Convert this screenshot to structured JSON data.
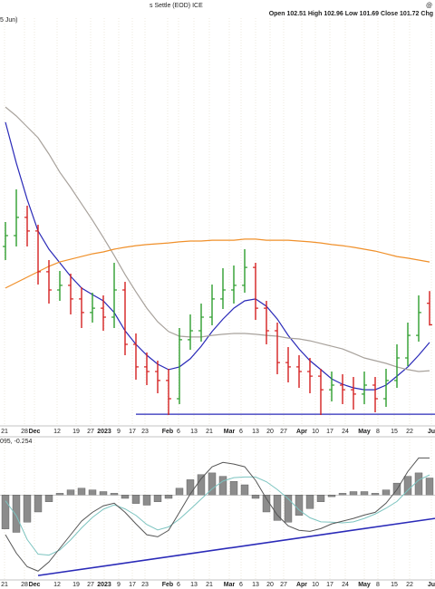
{
  "chart_data": [
    {
      "type": "ohlc",
      "title": "s Settle (EOD) ICE",
      "readout": "Open 102.51  High 102.96  Low 101.69  Close 101.72  Chg",
      "corner_mark": "@",
      "note": "5 Jun)",
      "open": [
        104.6,
        105.0,
        105.67,
        105.17,
        103.67,
        103.0,
        103.17,
        102.67,
        102.17,
        102.33,
        102.0,
        103.0,
        101.0,
        100.17,
        100.0,
        99.67,
        99.0,
        101.17,
        101.5,
        102.0,
        102.67,
        103.0,
        103.17,
        103.83,
        102.33,
        101.5,
        100.33,
        100.17,
        100.0,
        99.83,
        99.33,
        99.5,
        99.33,
        99.17,
        99.5,
        99.0,
        99.67,
        100.5,
        101.33,
        102.51
      ],
      "high": [
        105.5,
        106.7,
        106.1,
        105.4,
        104.1,
        103.7,
        103.6,
        103.1,
        102.9,
        102.8,
        104.0,
        103.3,
        101.4,
        100.7,
        100.4,
        100.1,
        101.6,
        102.1,
        102.5,
        103.2,
        103.8,
        103.9,
        104.5,
        104.0,
        102.6,
        101.8,
        100.9,
        100.6,
        100.5,
        100.1,
        100.0,
        99.9,
        99.8,
        100.0,
        99.8,
        100.1,
        101.0,
        101.8,
        102.8,
        102.96
      ],
      "low": [
        104.1,
        104.6,
        104.6,
        103.2,
        102.5,
        102.6,
        102.1,
        101.6,
        101.8,
        101.5,
        101.6,
        100.6,
        99.7,
        99.5,
        99.2,
        98.4,
        98.8,
        100.8,
        101.1,
        101.7,
        102.3,
        102.5,
        102.9,
        101.9,
        101.0,
        99.9,
        99.6,
        99.4,
        99.2,
        98.4,
        98.9,
        98.8,
        98.6,
        98.8,
        98.5,
        98.7,
        99.4,
        100.2,
        101.1,
        101.69
      ],
      "close": [
        105.0,
        105.67,
        105.17,
        103.67,
        103.0,
        103.17,
        102.67,
        102.17,
        102.33,
        102.0,
        103.0,
        101.0,
        100.17,
        100.0,
        99.67,
        99.0,
        101.17,
        101.5,
        102.0,
        102.67,
        103.0,
        103.17,
        103.83,
        102.33,
        101.5,
        100.33,
        100.17,
        100.0,
        99.83,
        99.33,
        99.5,
        99.33,
        99.17,
        99.5,
        99.0,
        99.67,
        100.5,
        101.33,
        102.17,
        101.72
      ],
      "up_color": "#2e9e2e",
      "down_color": "#d42020",
      "series": [
        {
          "color": "#2a2ab8",
          "values": [
            109.17,
            107.67,
            106.33,
            105.17,
            104.5,
            104.0,
            103.5,
            103.07,
            102.83,
            102.6,
            102.17,
            101.5,
            101.0,
            100.6,
            100.27,
            100.07,
            100.17,
            100.47,
            100.93,
            101.47,
            101.93,
            102.33,
            102.6,
            102.67,
            102.4,
            101.93,
            101.33,
            100.83,
            100.4,
            100.07,
            99.73,
            99.53,
            99.4,
            99.33,
            99.33,
            99.5,
            99.83,
            100.17,
            100.6,
            101.07
          ]
        },
        {
          "color": "#a8a29c",
          "values": [
            109.73,
            109.4,
            109.0,
            108.6,
            108.0,
            107.33,
            106.77,
            106.17,
            105.57,
            104.93,
            104.27,
            103.57,
            102.93,
            102.33,
            101.83,
            101.47,
            101.3,
            101.27,
            101.27,
            101.33,
            101.37,
            101.4,
            101.4,
            101.37,
            101.33,
            101.3,
            101.23,
            101.2,
            101.13,
            101.03,
            100.93,
            100.83,
            100.67,
            100.5,
            100.4,
            100.3,
            100.17,
            100.07,
            100.0,
            100.03
          ]
        },
        {
          "color": "#f0902a",
          "values": [
            103.07,
            103.27,
            103.47,
            103.67,
            103.87,
            104.03,
            104.13,
            104.23,
            104.33,
            104.4,
            104.5,
            104.57,
            104.63,
            104.67,
            104.7,
            104.73,
            104.77,
            104.8,
            104.8,
            104.83,
            104.83,
            104.83,
            104.87,
            104.87,
            104.83,
            104.83,
            104.83,
            104.8,
            104.77,
            104.73,
            104.67,
            104.63,
            104.57,
            104.5,
            104.43,
            104.33,
            104.23,
            104.17,
            104.1,
            104.03
          ]
        }
      ],
      "support": {
        "value": 98.43,
        "color": "#2a2ab8"
      },
      "ylim": [
        98,
        113
      ],
      "xtick_labels": [
        "21",
        "28",
        "Dec",
        "12",
        "19",
        "27",
        "2023",
        "9",
        "17",
        "23",
        "Feb",
        "6",
        "13",
        "21",
        "Mar",
        "6",
        "13",
        "20",
        "27",
        "Apr",
        "10",
        "17",
        "24",
        "May",
        "8",
        "15",
        "22",
        "Ju"
      ]
    },
    {
      "type": "macd",
      "label": "095, -0.254",
      "macd": {
        "color": "#555555",
        "values": [
          -1.17,
          -1.71,
          -2.11,
          -2.24,
          -1.97,
          -1.57,
          -1.17,
          -0.77,
          -0.51,
          -0.32,
          -0.24,
          -0.51,
          -0.85,
          -1.17,
          -1.23,
          -1.04,
          -0.51,
          0.03,
          0.48,
          0.83,
          0.96,
          0.91,
          0.83,
          0.43,
          -0.11,
          -0.59,
          -0.91,
          -1.04,
          -1.07,
          -0.99,
          -0.85,
          -0.77,
          -0.69,
          -0.59,
          -0.51,
          -0.24,
          0.16,
          0.69,
          1.09,
          1.09
        ]
      },
      "signal": {
        "color": "#7cc4c0",
        "values": [
          -0.17,
          -0.61,
          -1.31,
          -1.74,
          -1.77,
          -1.62,
          -1.32,
          -0.97,
          -0.66,
          -0.42,
          -0.29,
          -0.41,
          -0.6,
          -0.87,
          -1.03,
          -0.94,
          -0.71,
          -0.42,
          -0.12,
          0.18,
          0.41,
          0.51,
          0.53,
          0.53,
          0.39,
          0.16,
          -0.11,
          -0.44,
          -0.67,
          -0.79,
          -0.8,
          -0.82,
          -0.79,
          -0.69,
          -0.56,
          -0.39,
          -0.19,
          0.14,
          0.44,
          0.59
        ]
      },
      "histogram": {
        "color": "#8c8c8c",
        "values": [
          -1.0,
          -1.1,
          -0.8,
          -0.5,
          -0.2,
          0.05,
          0.15,
          0.2,
          0.15,
          0.1,
          0.05,
          -0.1,
          -0.25,
          -0.3,
          -0.2,
          -0.1,
          0.2,
          0.45,
          0.6,
          0.65,
          0.55,
          0.4,
          0.3,
          -0.1,
          -0.5,
          -0.75,
          -0.8,
          -0.6,
          -0.4,
          -0.2,
          -0.05,
          0.05,
          0.1,
          0.1,
          0.05,
          0.15,
          0.35,
          0.55,
          0.65,
          0.5
        ]
      },
      "trendline": {
        "color": "#2a2ab8",
        "values": [
          -2.37,
          -0.69
        ]
      },
      "ylim": [
        -2.5,
        1.5
      ],
      "xtick_labels": [
        "21",
        "28",
        "Dec",
        "12",
        "19",
        "27",
        "2023",
        "9",
        "17",
        "23",
        "Feb",
        "6",
        "13",
        "21",
        "Mar",
        "6",
        "13",
        "20",
        "27",
        "Apr",
        "10",
        "17",
        "24",
        "May",
        "8",
        "15",
        "22",
        "Ju"
      ]
    }
  ]
}
